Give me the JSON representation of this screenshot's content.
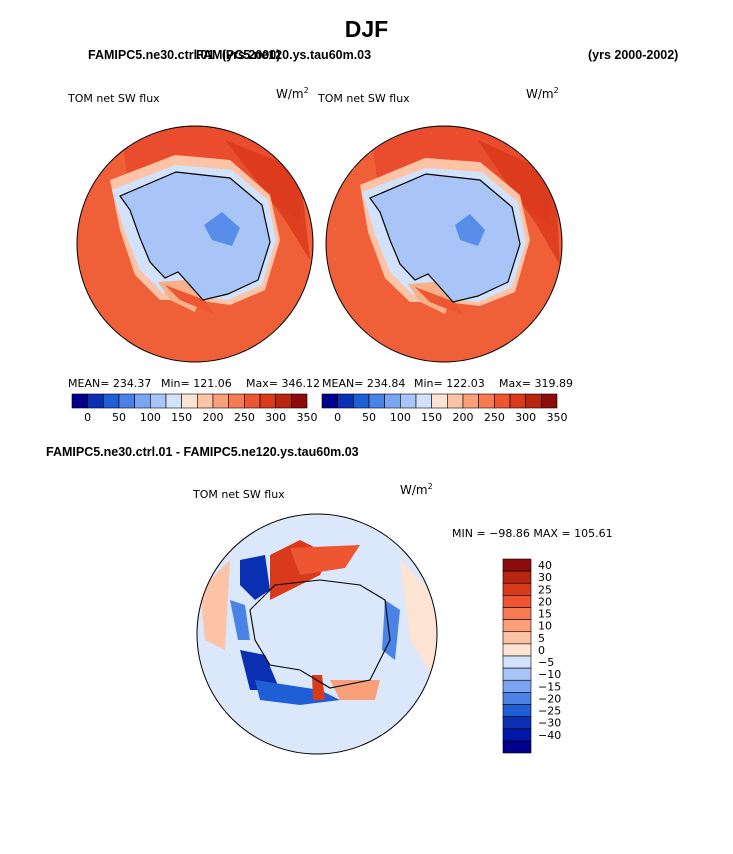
{
  "figure": {
    "season": "DJF",
    "case_a_label": "FAMIPC5.ne30.ctrl.01",
    "case_a_years": "(yrs 2000)",
    "case_b_label": "FAMIPC5.ne120.ys.tau60m.03",
    "case_b_years": "(yrs 2000-2002)",
    "diff_title": "FAMIPC5.ne30.ctrl.01 - FAMIPC5.ne120.ys.tau60m.03"
  },
  "chart_data": [
    {
      "type": "heatmap",
      "projection": "polar-stereographic-south",
      "title": "TOM net SW flux",
      "units_base": "W/m",
      "units_exp": "2",
      "stats": {
        "mean": "MEAN= 234.37",
        "min": "Min= 121.06",
        "max": "Max= 346.12"
      },
      "levels": [
        0,
        50,
        100,
        150,
        200,
        250,
        300,
        350
      ],
      "tick_labels": [
        "0",
        "50",
        "100",
        "150",
        "200",
        "250",
        "300",
        "350"
      ],
      "colors": [
        "#00008c",
        "#0a2fb3",
        "#1f5fd6",
        "#4a82e6",
        "#7aa5f0",
        "#a9c5f7",
        "#d3e2fb",
        "#fde3d2",
        "#fcc3a6",
        "#f9a07b",
        "#f67b53",
        "#ee5532",
        "#d93a1c",
        "#b82510",
        "#8c0b0b"
      ]
    },
    {
      "type": "heatmap",
      "projection": "polar-stereographic-south",
      "title": "TOM net SW flux",
      "units_base": "W/m",
      "units_exp": "2",
      "stats": {
        "mean": "MEAN= 234.84",
        "min": "Min= 122.03",
        "max": "Max= 319.89"
      },
      "levels": [
        0,
        50,
        100,
        150,
        200,
        250,
        300,
        350
      ],
      "tick_labels": [
        "0",
        "50",
        "100",
        "150",
        "200",
        "250",
        "300",
        "350"
      ],
      "colors": [
        "#00008c",
        "#0a2fb3",
        "#1f5fd6",
        "#4a82e6",
        "#7aa5f0",
        "#a9c5f7",
        "#d3e2fb",
        "#fde3d2",
        "#fcc3a6",
        "#f9a07b",
        "#f67b53",
        "#ee5532",
        "#d93a1c",
        "#b82510",
        "#8c0b0b"
      ]
    },
    {
      "type": "heatmap",
      "projection": "polar-stereographic-south",
      "title": "TOM net SW flux",
      "units_base": "W/m",
      "units_exp": "2",
      "stats_text": "MIN = −98.86  MAX = 105.61",
      "levels": [
        40,
        30,
        25,
        20,
        15,
        10,
        5,
        0,
        -5,
        -10,
        -15,
        -20,
        -25,
        -30,
        -40
      ],
      "tick_labels": [
        "40",
        "30",
        "25",
        "20",
        "15",
        "10",
        "5",
        "0",
        "−5",
        "−10",
        "−15",
        "−20",
        "−25",
        "−30",
        "−40"
      ],
      "colors": [
        "#8c0b0b",
        "#b82510",
        "#d93a1c",
        "#ee5532",
        "#f67b53",
        "#f9a07b",
        "#fcc3a6",
        "#fde3d2",
        "#d3e2fb",
        "#a9c5f7",
        "#7aa5f0",
        "#4a82e6",
        "#1f5fd6",
        "#0a2fb3",
        "#0018a8",
        "#00008c"
      ]
    }
  ]
}
